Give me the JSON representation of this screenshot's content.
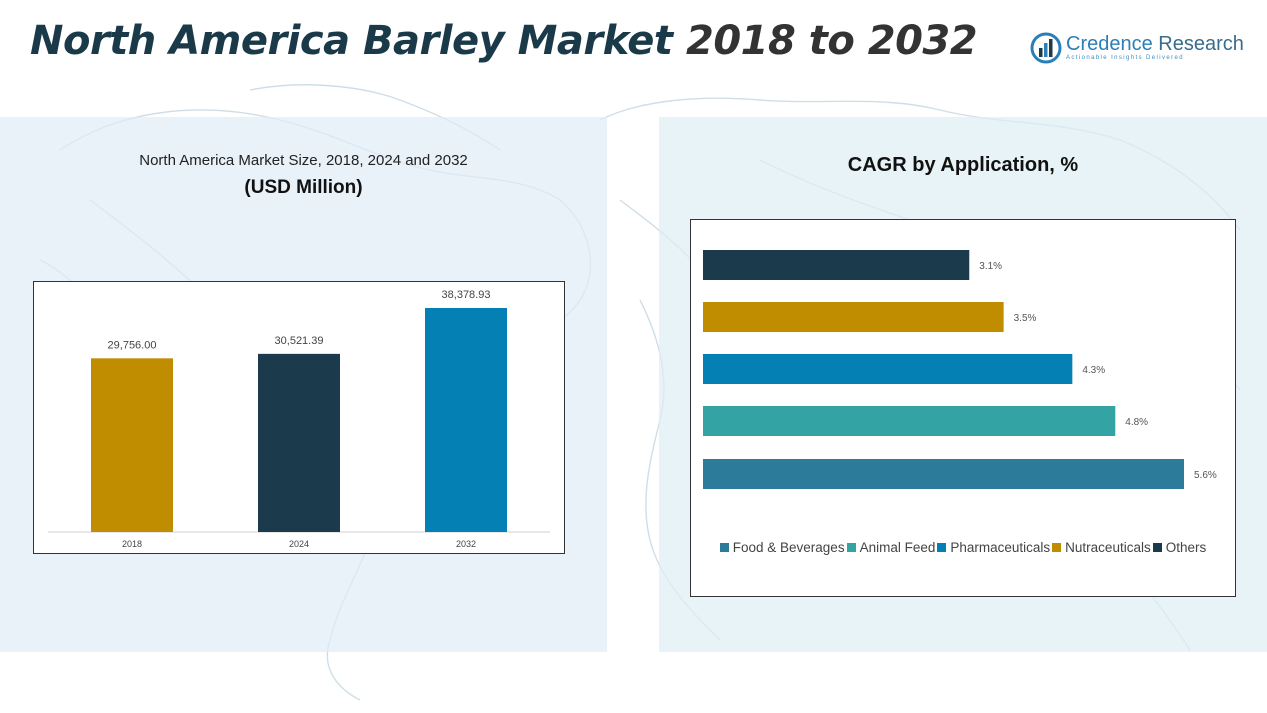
{
  "header": {
    "title_main": "North America Barley Market",
    "title_years": "2018 to 2032"
  },
  "logo": {
    "name_part1": "Credence",
    "name_part2": "Research",
    "tagline": "Actionable Insights Delivered",
    "icon": "bar-chart-circle-icon"
  },
  "left_panel": {
    "subtitle": "North America Market Size, 2018, 2024 and 2032",
    "unit": "(USD Million)"
  },
  "right_panel": {
    "title": "CAGR by Application, %"
  },
  "chart_data": [
    {
      "type": "bar",
      "title": "North America Market Size, 2018, 2024 and 2032",
      "ylabel": "(USD Million)",
      "categories": [
        "2018",
        "2024",
        "2032"
      ],
      "values": [
        29756.0,
        30521.39,
        38378.93
      ],
      "value_labels": [
        "29,756.00",
        "30,521.39",
        "38,378.93"
      ],
      "colors": [
        "#c08c00",
        "#1b3a4b",
        "#0580b4"
      ],
      "grid": false
    },
    {
      "type": "bar",
      "orientation": "horizontal",
      "title": "CAGR by Application, %",
      "categories": [
        "Others",
        "Nutraceuticals",
        "Pharmaceuticals",
        "Animal Feed",
        "Food & Beverages"
      ],
      "values": [
        3.1,
        3.5,
        4.3,
        4.8,
        5.6
      ],
      "value_labels": [
        "3.1%",
        "3.5%",
        "4.3%",
        "4.8%",
        "5.6%"
      ],
      "colors": [
        "#1b3a4b",
        "#c08c00",
        "#0580b4",
        "#34a3a3",
        "#2d7b9a"
      ],
      "legend": {
        "position": "bottom",
        "entries": [
          {
            "label": "Food & Beverages",
            "color": "#2d7b9a"
          },
          {
            "label": "Animal Feed",
            "color": "#34a3a3"
          },
          {
            "label": "Pharmaceuticals",
            "color": "#0580b4"
          },
          {
            "label": "Nutraceuticals",
            "color": "#c08c00"
          },
          {
            "label": "Others",
            "color": "#1b3a4b"
          }
        ]
      },
      "grid": false
    }
  ]
}
